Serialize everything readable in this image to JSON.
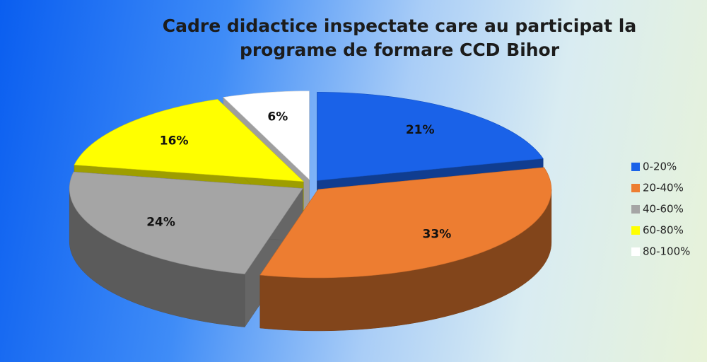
{
  "chart_data": {
    "type": "pie",
    "title": "Cadre didactice inspectate care au participat la programe de formare CCD Bihor",
    "categories": [
      "0-20%",
      "20-40%",
      "40-60%",
      "60-80%",
      "80-100%"
    ],
    "values": [
      21,
      33,
      24,
      16,
      6
    ],
    "value_labels": [
      "21%",
      "33%",
      "24%",
      "16%",
      "6%"
    ],
    "colors": [
      "#1a62e8",
      "#ed7d31",
      "#a5a5a5",
      "#ffff00",
      "#ffffff"
    ],
    "legend": "right"
  }
}
